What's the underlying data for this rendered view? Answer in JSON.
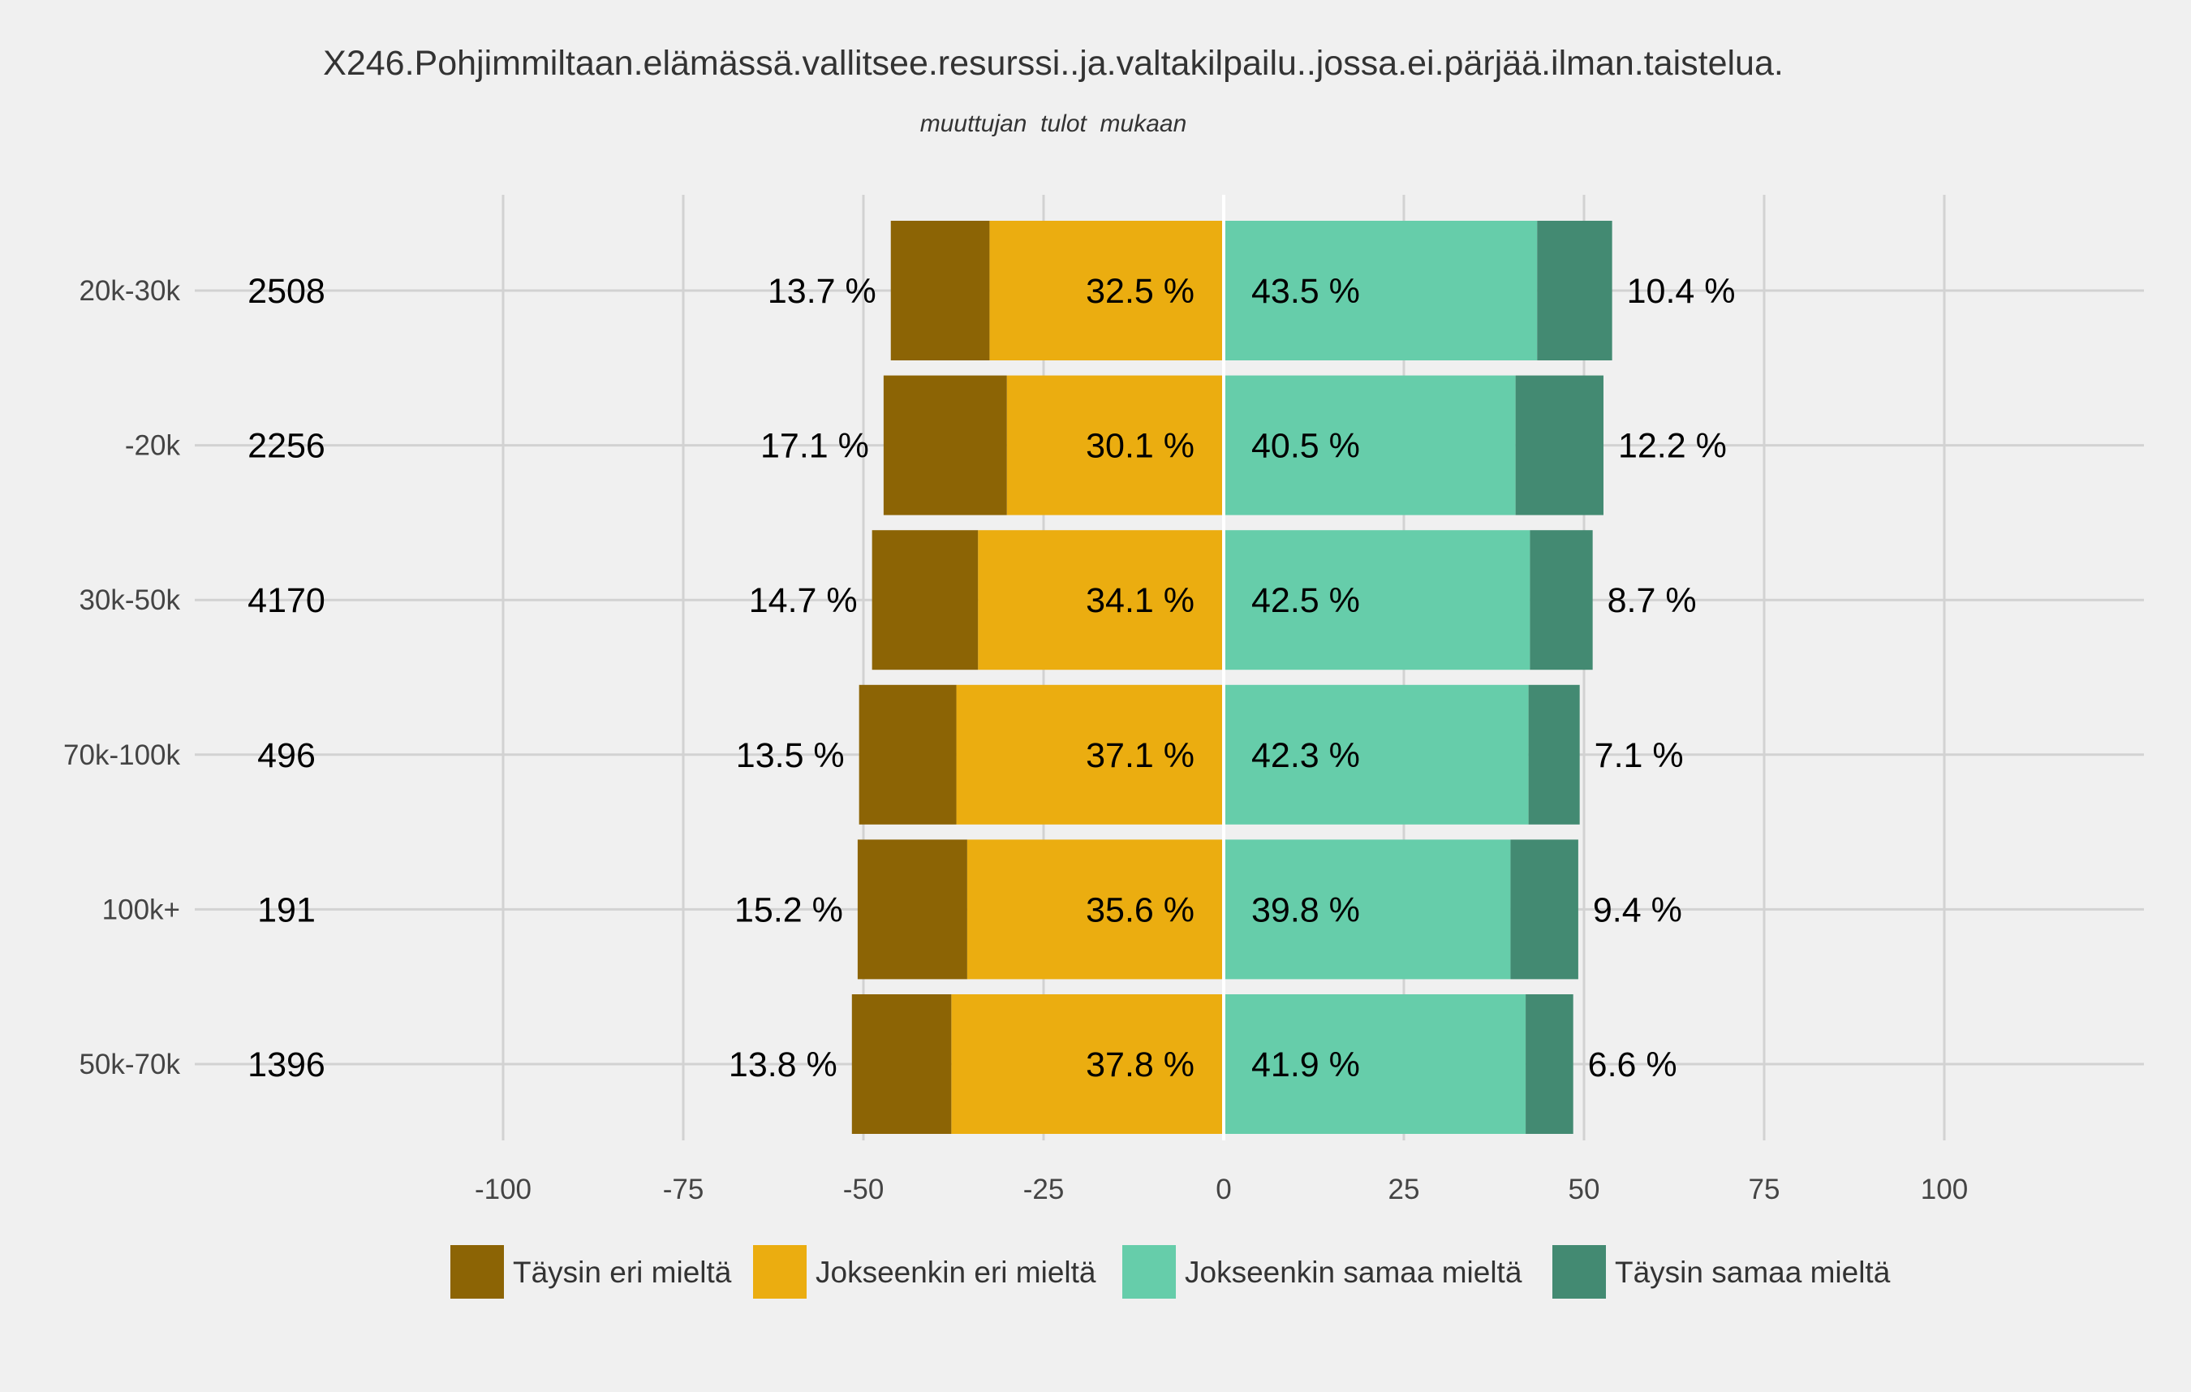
{
  "chart_data": {
    "type": "bar",
    "orientation": "horizontal",
    "stacked": "diverging",
    "title": "X246.Pohjimmiltaan.elämässä.vallitsee.resurssi..ja.valtakilpailu..jossa.ei.pärjää.ilman.taistelua.",
    "subtitle": "muuttujan  tulot  mukaan",
    "xlabel": "",
    "ylabel": "",
    "xlim": [
      -128,
      128
    ],
    "xticks": [
      -100,
      -75,
      -50,
      -25,
      0,
      25,
      50,
      75,
      100
    ],
    "xtick_labels": [
      "-100",
      "-75",
      "-50",
      "-25",
      "0",
      "25",
      "50",
      "75",
      "100"
    ],
    "grid": true,
    "legend_position": "bottom",
    "categories": [
      "20k-30k",
      "-20k",
      "30k-50k",
      "70k-100k",
      "100k+",
      "50k-70k"
    ],
    "counts": [
      "2508",
      "2256",
      "4170",
      "496",
      "191",
      "1396"
    ],
    "series": [
      {
        "name": "Täysin eri mieltä",
        "side": "negative",
        "color": "#8c6405",
        "values": [
          13.7,
          17.1,
          14.7,
          13.5,
          15.2,
          13.8
        ],
        "labels": [
          "13.7 %",
          "17.1 %",
          "14.7 %",
          "13.5 %",
          "15.2 %",
          "13.8 %"
        ]
      },
      {
        "name": "Jokseenkin eri mieltä",
        "side": "negative",
        "color": "#ebad10",
        "values": [
          32.5,
          30.1,
          34.1,
          37.1,
          35.6,
          37.8
        ],
        "labels": [
          "32.5 %",
          "30.1 %",
          "34.1 %",
          "37.1 %",
          "35.6 %",
          "37.8 %"
        ]
      },
      {
        "name": "Jokseenkin samaa mieltä",
        "side": "positive",
        "color": "#66cdaa",
        "values": [
          43.5,
          40.5,
          42.5,
          42.3,
          39.8,
          41.9
        ],
        "labels": [
          "43.5 %",
          "40.5 %",
          "42.5 %",
          "42.3 %",
          "39.8 %",
          "41.9 %"
        ]
      },
      {
        "name": "Täysin samaa mieltä",
        "side": "positive",
        "color": "#438a72",
        "values": [
          10.4,
          12.2,
          8.7,
          7.1,
          9.4,
          6.6
        ],
        "labels": [
          "10.4 %",
          "12.2 %",
          "8.7 %",
          "7.1 %",
          "9.4 %",
          "6.6 %"
        ]
      }
    ]
  }
}
